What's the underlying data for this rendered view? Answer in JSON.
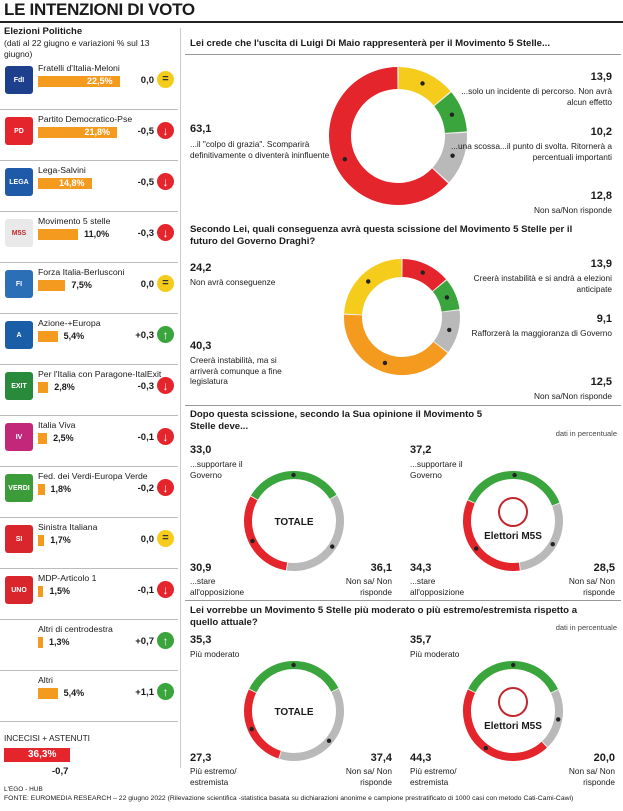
{
  "header": {
    "title": "LE INTENZIONI DI VOTO",
    "subtitle": "Elezioni Politiche",
    "note": "(dati al 22 giugno e variazioni % sul 13 giugno)"
  },
  "parties": [
    {
      "name": "Fratelli d'Italia-Meloni",
      "value": "22,5%",
      "value_num": 22.5,
      "variation": "0,0",
      "trend": "eq",
      "logo": "FdI",
      "logo_color": "#1d3f8c"
    },
    {
      "name": "Partito Democratico-Pse",
      "value": "21,8%",
      "value_num": 21.8,
      "variation": "-0,5",
      "trend": "down",
      "logo": "PD",
      "logo_color": "#e4252b"
    },
    {
      "name": "Lega-Salvini",
      "value": "14,8%",
      "value_num": 14.8,
      "variation": "-0,5",
      "trend": "down",
      "logo": "LEGA",
      "logo_color": "#1f5aa8"
    },
    {
      "name": "Movimento 5 stelle",
      "value": "11,0%",
      "value_num": 11.0,
      "variation": "-0,3",
      "trend": "down",
      "logo": "M5S",
      "logo_color": "#e9e9e9"
    },
    {
      "name": "Forza Italia-Berlusconi",
      "value": "7,5%",
      "value_num": 7.5,
      "variation": "0,0",
      "trend": "eq",
      "logo": "FI",
      "logo_color": "#2b6fb7"
    },
    {
      "name": "Azione-+Europa",
      "value": "5,4%",
      "value_num": 5.4,
      "variation": "+0,3",
      "trend": "up",
      "logo": "A",
      "logo_color": "#1b5ea8"
    },
    {
      "name": "Per l'Italia con Paragone-ItalExit",
      "value": "2,8%",
      "value_num": 2.8,
      "variation": "-0,3",
      "trend": "down",
      "logo": "EXIT",
      "logo_color": "#2a8a3c"
    },
    {
      "name": "Italia Viva",
      "value": "2,5%",
      "value_num": 2.5,
      "variation": "-0,1",
      "trend": "down",
      "logo": "IV",
      "logo_color": "#c2277a"
    },
    {
      "name": "Fed. dei Verdi-Europa Verde",
      "value": "1,8%",
      "value_num": 1.8,
      "variation": "-0,2",
      "trend": "down",
      "logo": "VERDI",
      "logo_color": "#3c9c3a"
    },
    {
      "name": "Sinistra Italiana",
      "value": "1,7%",
      "value_num": 1.7,
      "variation": "0,0",
      "trend": "eq",
      "logo": "SI",
      "logo_color": "#d8262c"
    },
    {
      "name": "MDP-Articolo 1",
      "value": "1,5%",
      "value_num": 1.5,
      "variation": "-0,1",
      "trend": "down",
      "logo": "UNO",
      "logo_color": "#d8262c"
    },
    {
      "name": "Altri di centrodestra",
      "value": "1,3%",
      "value_num": 1.3,
      "variation": "+0,7",
      "trend": "up",
      "logo": "",
      "logo_color": ""
    },
    {
      "name": "Altri",
      "value": "5,4%",
      "value_num": 5.4,
      "variation": "+1,1",
      "trend": "up",
      "logo": "",
      "logo_color": ""
    }
  ],
  "undecided": {
    "label": "INCECISI + ASTENUTI",
    "value": "36,3%",
    "value_num": 36.3,
    "variation": "-0,7"
  },
  "colors": {
    "red": "#e4252b",
    "yellow": "#f5cc1c",
    "green": "#3aa53c",
    "grey": "#b9b9b9",
    "orange": "#f39a1f"
  },
  "chart_data": [
    {
      "type": "pie",
      "title": "Lei crede che l'uscita di Luigi Di Maio rappresenterà per il Movimento 5 Stelle...",
      "slices": [
        {
          "label": "...solo un incidente di percorso. Non avrà alcun effetto",
          "value": 13.9,
          "value_text": "13,9",
          "color": "yellow"
        },
        {
          "label": "...una scossa...il punto di svolta. Ritornerà a percentuali importanti",
          "value": 10.2,
          "value_text": "10,2",
          "color": "green"
        },
        {
          "label": "Non sa/Non risponde",
          "value": 12.8,
          "value_text": "12,8",
          "color": "grey"
        },
        {
          "label": "...il \"colpo di grazia\". Scomparirà definitivamente o diventerà ininfluente",
          "value": 63.1,
          "value_text": "63,1",
          "color": "red"
        }
      ]
    },
    {
      "type": "pie",
      "title": "Secondo Lei, quali conseguenza avrà questa scissione del Movimento 5 Stelle per il futuro del Governo Draghi?",
      "slices": [
        {
          "label": "Creerà instabilità e si andrà a elezioni anticipate",
          "value": 13.9,
          "value_text": "13,9",
          "color": "red"
        },
        {
          "label": "Rafforzerà la maggioranza di Governo",
          "value": 9.1,
          "value_text": "9,1",
          "color": "green"
        },
        {
          "label": "Non sa/Non risponde",
          "value": 12.5,
          "value_text": "12,5",
          "color": "grey"
        },
        {
          "label": "Creerà instabilità, ma si arriverà comunque a fine legislatura",
          "value": 40.3,
          "value_text": "40,3",
          "color": "orange"
        },
        {
          "label": "Non avrà conseguenze",
          "value": 24.2,
          "value_text": "24,2",
          "color": "yellow"
        }
      ]
    },
    {
      "type": "pie",
      "title": "Dopo questa scissione, secondo la Sua opinione il Movimento 5 Stelle deve...",
      "note": "dati in percentuale",
      "groups": [
        {
          "name": "TOTALE",
          "slices": [
            {
              "label": "...supportare il Governo",
              "value": 33.0,
              "value_text": "33,0",
              "color": "green"
            },
            {
              "label": "Non sa/ Non risponde",
              "value": 36.1,
              "value_text": "36,1",
              "color": "grey"
            },
            {
              "label": "...stare all'opposizione",
              "value": 30.9,
              "value_text": "30,9",
              "color": "red"
            }
          ]
        },
        {
          "name": "Elettori M5S",
          "slices": [
            {
              "label": "...supportare il Governo",
              "value": 37.2,
              "value_text": "37,2",
              "color": "green"
            },
            {
              "label": "Non sa/ Non risponde",
              "value": 28.5,
              "value_text": "28,5",
              "color": "grey"
            },
            {
              "label": "...stare all'opposizione",
              "value": 34.3,
              "value_text": "34,3",
              "color": "red"
            }
          ]
        }
      ]
    },
    {
      "type": "pie",
      "title": "Lei vorrebbe un Movimento 5 Stelle più moderato o più estremo/estremista rispetto a quello attuale?",
      "note": "dati in percentuale",
      "groups": [
        {
          "name": "TOTALE",
          "slices": [
            {
              "label": "Più moderato",
              "value": 35.3,
              "value_text": "35,3",
              "color": "green"
            },
            {
              "label": "Non sa/ Non risponde",
              "value": 37.4,
              "value_text": "37,4",
              "color": "grey"
            },
            {
              "label": "Più estremo/ estremista",
              "value": 27.3,
              "value_text": "27,3",
              "color": "red"
            }
          ]
        },
        {
          "name": "Elettori M5S",
          "slices": [
            {
              "label": "Più moderato",
              "value": 35.7,
              "value_text": "35,7",
              "color": "green"
            },
            {
              "label": "Non sa/ Non risponde",
              "value": 20.0,
              "value_text": "20,0",
              "color": "grey"
            },
            {
              "label": "Più estremo/ estremista",
              "value": 44.3,
              "value_text": "44,3",
              "color": "red"
            }
          ]
        }
      ]
    }
  ],
  "footer": {
    "credit": "L'EGO - HUB",
    "source": "FONTE: EUROMEDIA RESEARCH – 22 giugno 2022 (Rilevazione scientifica -statistica basata su dichiarazioni anonime e campione prestratificato di 1000 casi con metodo Cati-Cami-Cawi)"
  }
}
